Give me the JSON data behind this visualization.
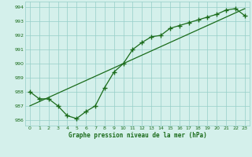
{
  "x": [
    0,
    1,
    2,
    3,
    4,
    5,
    6,
    7,
    8,
    9,
    10,
    11,
    12,
    13,
    14,
    15,
    16,
    17,
    18,
    19,
    20,
    21,
    22,
    23
  ],
  "y_actual": [
    988.0,
    987.5,
    987.5,
    987.0,
    986.3,
    986.1,
    986.6,
    987.0,
    988.3,
    989.4,
    990.0,
    991.0,
    991.5,
    991.9,
    992.0,
    992.5,
    992.7,
    992.9,
    993.1,
    993.3,
    993.5,
    993.8,
    993.9,
    993.4
  ],
  "y_linear": [
    987.0,
    987.3,
    987.6,
    987.9,
    988.2,
    988.5,
    988.8,
    989.1,
    989.4,
    989.7,
    990.0,
    990.3,
    990.6,
    990.9,
    991.2,
    991.5,
    991.8,
    992.1,
    992.4,
    992.7,
    993.0,
    993.3,
    993.6,
    993.9
  ],
  "xlim": [
    -0.5,
    23.5
  ],
  "ylim": [
    985.6,
    994.4
  ],
  "yticks": [
    986,
    987,
    988,
    989,
    990,
    991,
    992,
    993,
    994
  ],
  "xticks": [
    0,
    1,
    2,
    3,
    4,
    5,
    6,
    7,
    8,
    9,
    10,
    11,
    12,
    13,
    14,
    15,
    16,
    17,
    18,
    19,
    20,
    21,
    22,
    23
  ],
  "xlabel": "Graphe pression niveau de la mer (hPa)",
  "line_color": "#1a6b1a",
  "bg_color": "#d4f0eb",
  "grid_color": "#96cec8",
  "marker": "+",
  "marker_size": 4,
  "linewidth": 0.9
}
